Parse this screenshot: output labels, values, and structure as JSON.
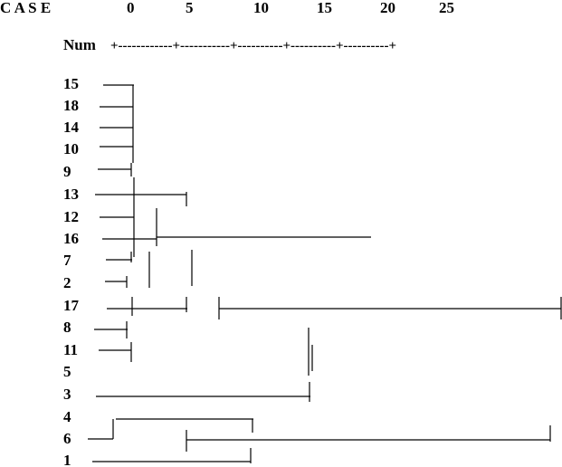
{
  "header": {
    "case_label": "C A S E",
    "num_label": "Num",
    "scale_ticks": [
      "0",
      "5",
      "10",
      "15",
      "20",
      "25"
    ]
  },
  "cases": [
    "15",
    "18",
    "14",
    "10",
    "9",
    "13",
    "12",
    "16",
    "7",
    "2",
    "17",
    "8",
    "11",
    "5",
    "3",
    "4",
    "6",
    "1"
  ]
}
